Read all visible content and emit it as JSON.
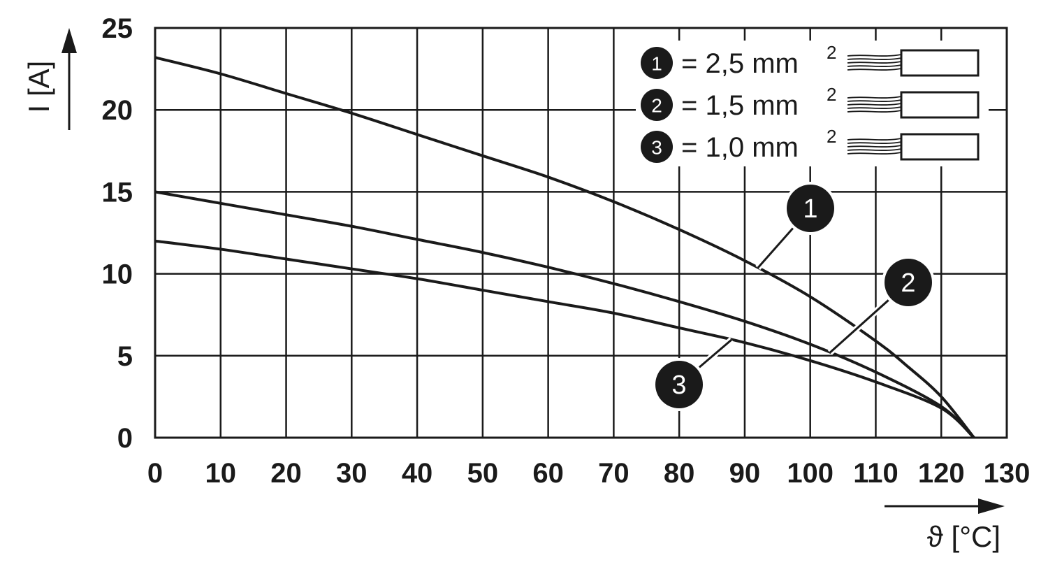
{
  "chart_data": {
    "type": "line",
    "xlabel": "ϑ [°C]",
    "ylabel": "I [A]",
    "xlim": [
      0,
      130
    ],
    "ylim": [
      0,
      25
    ],
    "x_ticks": [
      "0",
      "10",
      "20",
      "30",
      "40",
      "50",
      "60",
      "70",
      "80",
      "90",
      "100",
      "110",
      "120",
      "130"
    ],
    "y_ticks": [
      "0",
      "5",
      "10",
      "15",
      "20",
      "25"
    ],
    "grid": true,
    "legend_position": "top-right",
    "series": [
      {
        "name": "1",
        "legend": "= 2,5 mm",
        "legend_sup": "2",
        "x": [
          0,
          10,
          20,
          30,
          40,
          50,
          60,
          70,
          80,
          90,
          100,
          110,
          115,
          120,
          125
        ],
        "y": [
          23.2,
          22.2,
          21.0,
          19.8,
          18.5,
          17.2,
          15.9,
          14.4,
          12.7,
          10.8,
          8.6,
          5.9,
          4.3,
          2.5,
          0
        ]
      },
      {
        "name": "2",
        "legend": "= 1,5 mm",
        "legend_sup": "2",
        "x": [
          0,
          10,
          20,
          30,
          40,
          50,
          60,
          70,
          80,
          90,
          100,
          110,
          120,
          125
        ],
        "y": [
          15.0,
          14.3,
          13.6,
          12.9,
          12.1,
          11.3,
          10.4,
          9.4,
          8.3,
          7.1,
          5.7,
          4.0,
          1.9,
          0
        ]
      },
      {
        "name": "3",
        "legend": "= 1,0 mm",
        "legend_sup": "2",
        "x": [
          0,
          10,
          20,
          30,
          40,
          50,
          60,
          70,
          80,
          90,
          100,
          110,
          120,
          125
        ],
        "y": [
          12.0,
          11.5,
          10.9,
          10.3,
          9.7,
          9.0,
          8.3,
          7.6,
          6.7,
          5.8,
          4.7,
          3.4,
          1.8,
          0
        ]
      }
    ]
  }
}
